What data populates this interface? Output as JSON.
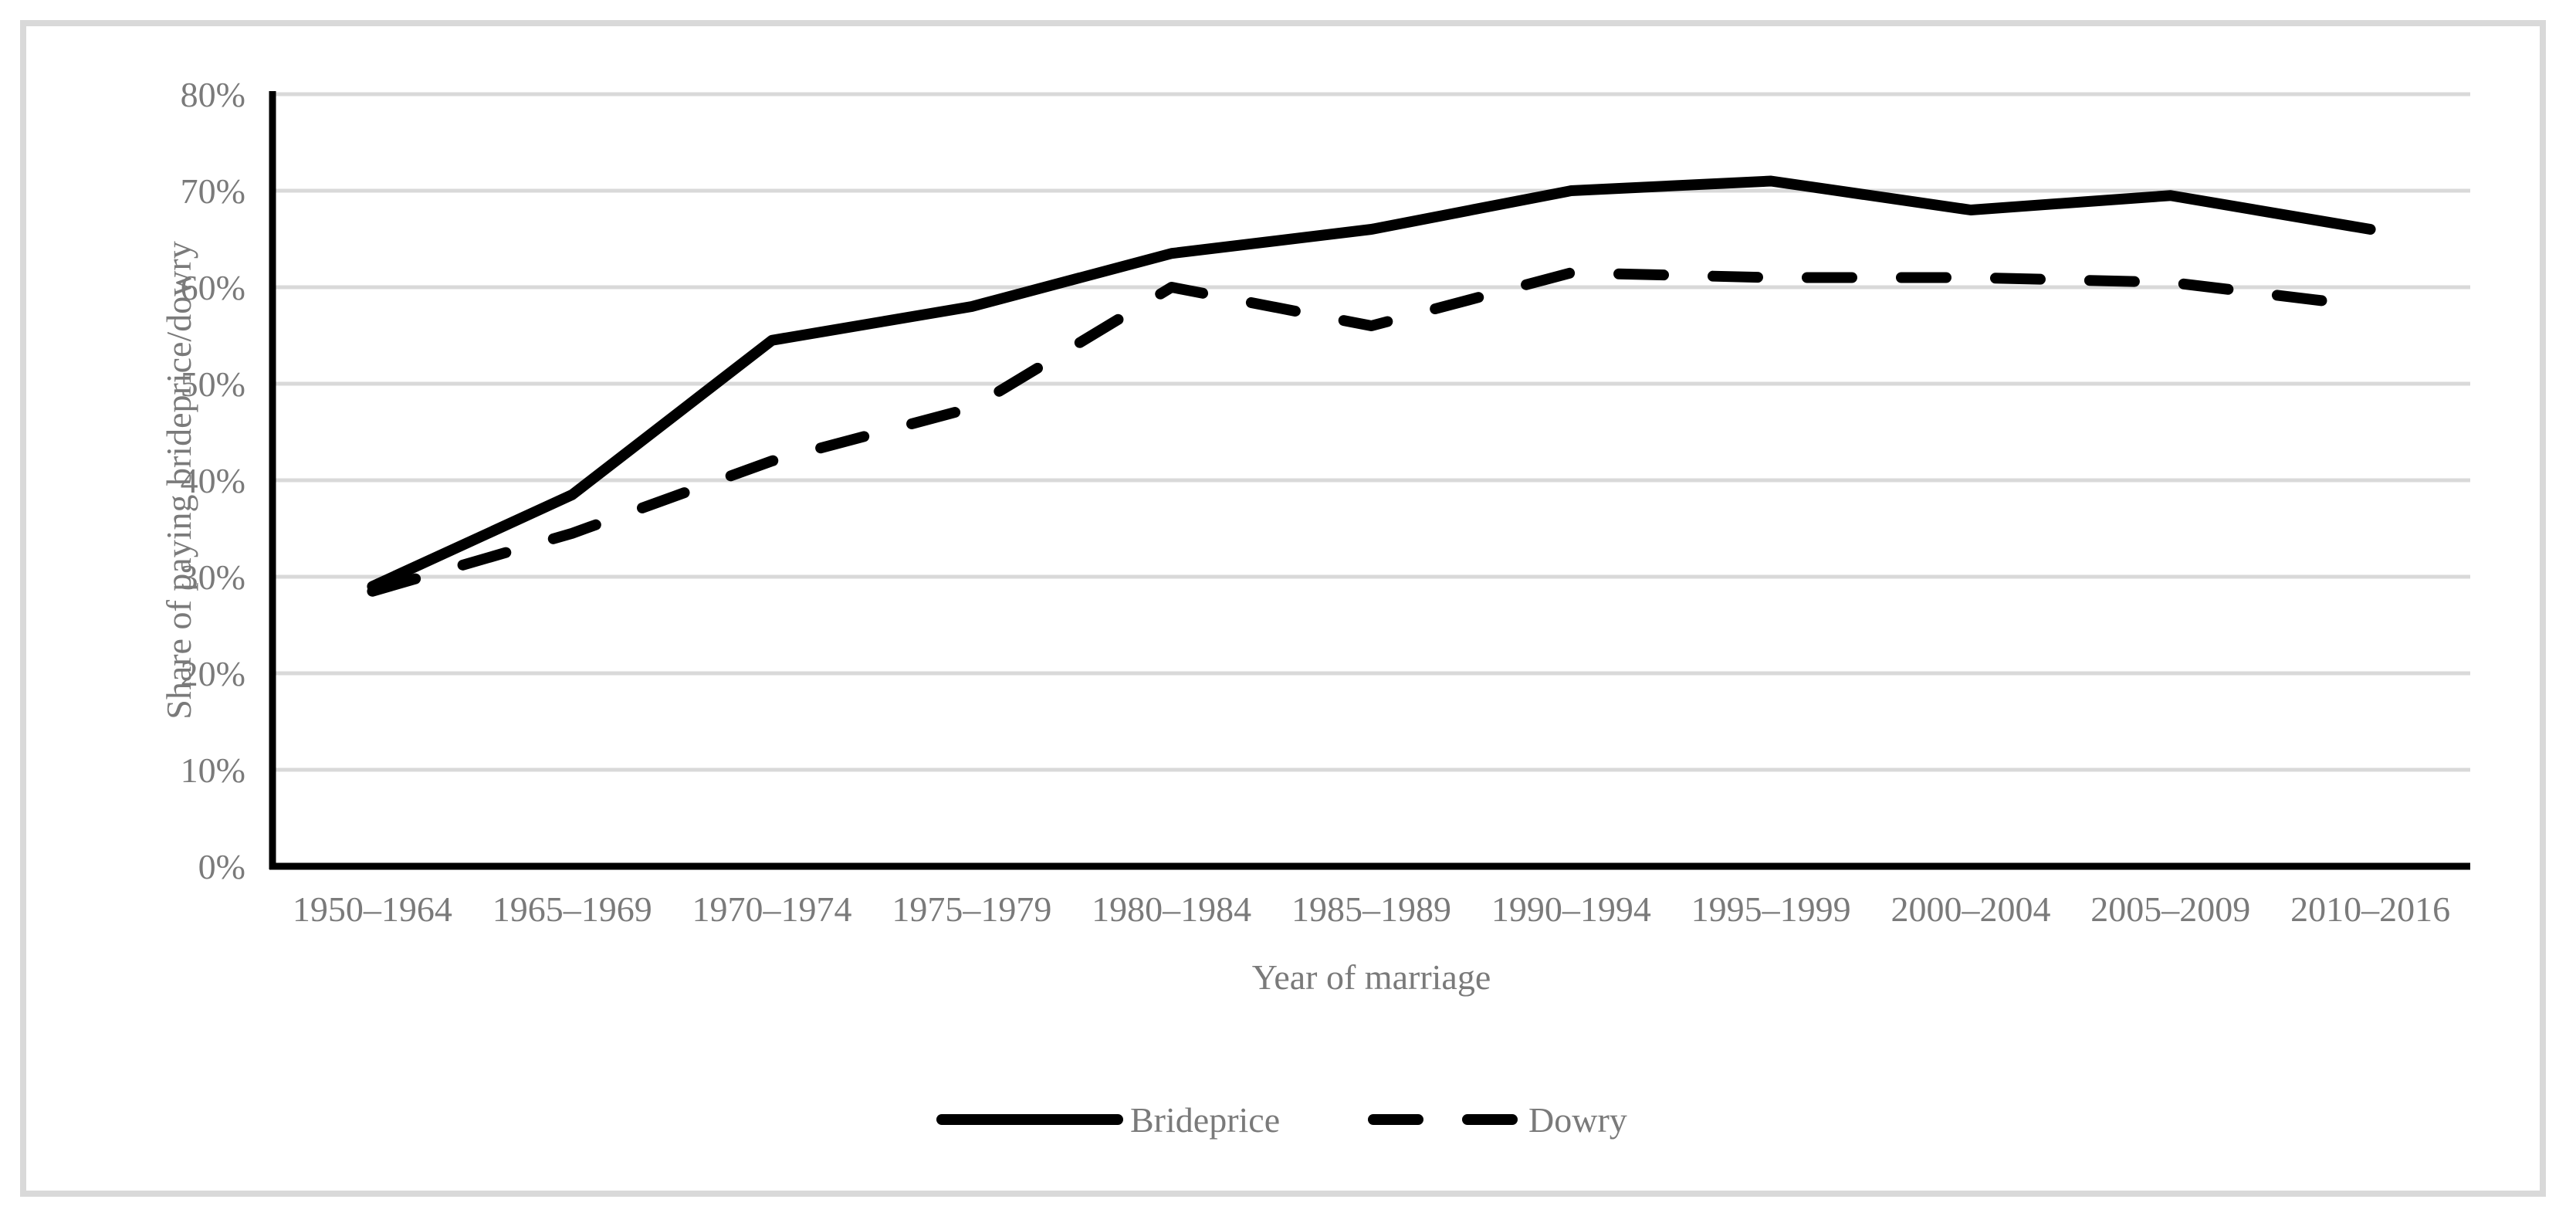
{
  "figure": {
    "background": "#ffffff",
    "frame_color": "#d9d9d9",
    "grid_color": "#d9d9d9",
    "axis_color": "#000000",
    "text_color": "#7a7a7a",
    "series_color": "#000000"
  },
  "chart_data": {
    "type": "line",
    "title": "",
    "xlabel": "Year of marriage",
    "ylabel": "Share of paying brideprice/dowry",
    "categories": [
      "1950–1964",
      "1965–1969",
      "1970–1974",
      "1975–1979",
      "1980–1984",
      "1985–1989",
      "1990–1994",
      "1995–1999",
      "2000–2004",
      "2005–2009",
      "2010–2016"
    ],
    "series": [
      {
        "name": "Brideprice",
        "style": "solid",
        "values": [
          29,
          38.5,
          54.5,
          58,
          63.5,
          66,
          70,
          71,
          68,
          69.5,
          66
        ]
      },
      {
        "name": "Dowry",
        "style": "dashed",
        "values": [
          28.5,
          34.5,
          42,
          47.5,
          60,
          56,
          61.5,
          61,
          61,
          60.5,
          58
        ]
      }
    ],
    "ylim": [
      0,
      80
    ],
    "ytick_step": 10,
    "ytick_labels": [
      "0%",
      "10%",
      "20%",
      "30%",
      "40%",
      "50%",
      "60%",
      "70%",
      "80%"
    ],
    "grid": "horizontal-only",
    "legend_position": "bottom-center"
  },
  "legend": {
    "items": [
      {
        "label": "Brideprice",
        "swatch": "solid-line"
      },
      {
        "label": "Dowry",
        "swatch": "dashed-line"
      }
    ]
  }
}
